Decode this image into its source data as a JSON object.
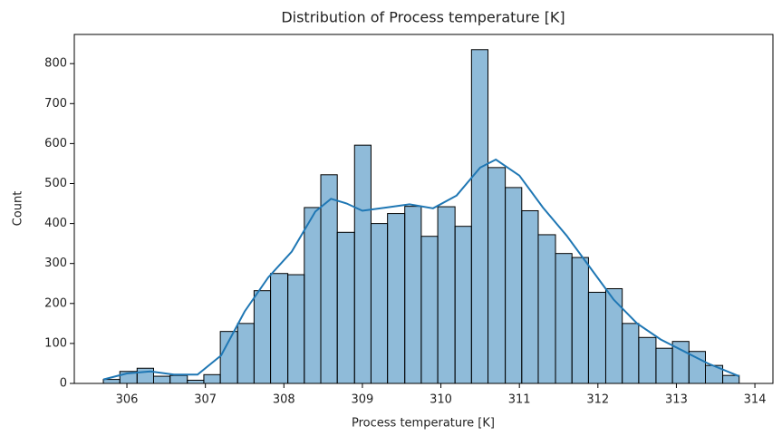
{
  "chart_data": {
    "type": "histogram",
    "title": "Distribution of Process temperature [K]",
    "x_label": "Process temperature [K]",
    "y_label": "Count",
    "bins": [
      305.7,
      305.91,
      306.13,
      306.34,
      306.55,
      306.77,
      306.98,
      307.19,
      307.41,
      307.62,
      307.83,
      308.05,
      308.26,
      308.47,
      308.68,
      308.9,
      309.11,
      309.32,
      309.54,
      309.75,
      309.96,
      310.18,
      310.39,
      310.6,
      310.82,
      311.03,
      311.24,
      311.46,
      311.67,
      311.88,
      312.1,
      312.31,
      312.52,
      312.74,
      312.95,
      313.16,
      313.37,
      313.59,
      313.8
    ],
    "counts": [
      10,
      30,
      38,
      18,
      20,
      8,
      22,
      130,
      150,
      232,
      275,
      272,
      440,
      522,
      378,
      596,
      400,
      425,
      443,
      368,
      442,
      393,
      835,
      540,
      490,
      432,
      372,
      325,
      315,
      228,
      237,
      150,
      115,
      88,
      105,
      80,
      45,
      20
    ],
    "color": "#1f77b4",
    "kde": {
      "x": [
        305.7,
        306,
        306.3,
        306.6,
        306.9,
        307.2,
        307.5,
        307.8,
        308.1,
        308.4,
        308.6,
        308.8,
        309,
        309.3,
        309.6,
        309.9,
        310.2,
        310.5,
        310.7,
        311,
        311.3,
        311.6,
        311.9,
        312.2,
        312.5,
        312.8,
        313.1,
        313.4,
        313.8
      ],
      "values": [
        10,
        25,
        30,
        22,
        22,
        70,
        180,
        265,
        330,
        430,
        462,
        450,
        432,
        440,
        448,
        438,
        470,
        540,
        560,
        520,
        440,
        370,
        290,
        210,
        150,
        110,
        80,
        50,
        18
      ]
    },
    "xlim": [
      305.33,
      314.23
    ],
    "ylim": [
      0,
      873
    ],
    "xticks": [
      306,
      307,
      308,
      309,
      310,
      311,
      312,
      313,
      314
    ],
    "yticks": [
      0,
      100,
      200,
      300,
      400,
      500,
      600,
      700,
      800
    ]
  }
}
